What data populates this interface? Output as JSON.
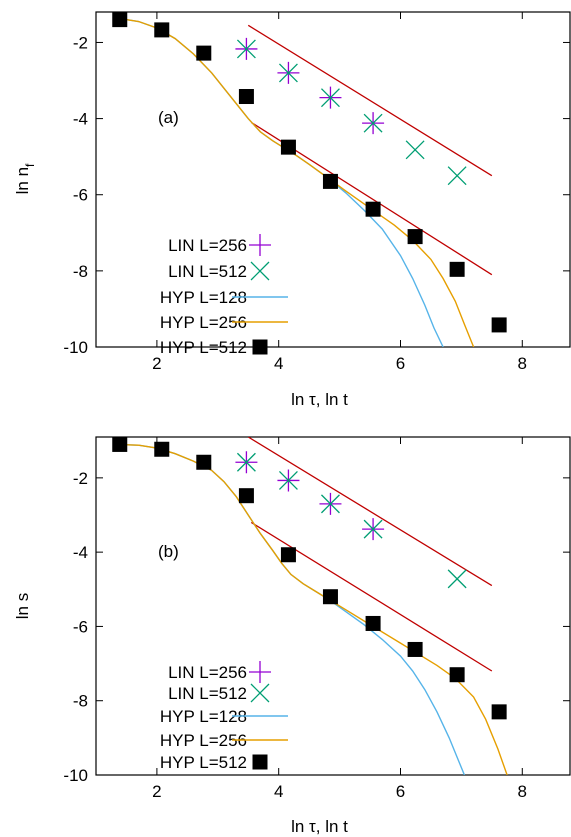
{
  "colors": {
    "lin256": "#9400d3",
    "lin512": "#009e73",
    "hyp128": "#56b4e9",
    "hyp256": "#e69f00",
    "hyp512": "#000000",
    "guide": "#c00000"
  },
  "chart_data": [
    {
      "type": "scatter",
      "panel_label": "(a)",
      "xlabel": "ln τ, ln t",
      "ylabel_main": "ln n",
      "ylabel_sub": "f",
      "xlim": [
        1,
        8.8
      ],
      "ylim": [
        -10,
        -1.2
      ],
      "xticks": [
        2,
        4,
        6,
        8
      ],
      "yticks": [
        -10,
        -8,
        -6,
        -4,
        -2
      ],
      "grid": false,
      "legend_position": "bottom-left",
      "series": [
        {
          "name": "LIN L=256",
          "kind": "plus",
          "color_key": "lin256",
          "x": [
            3.47,
            4.16,
            4.85,
            5.55
          ],
          "y": [
            -2.17,
            -2.8,
            -3.45,
            -4.12
          ]
        },
        {
          "name": "LIN L=512",
          "kind": "cross",
          "color_key": "lin512",
          "x": [
            3.47,
            4.16,
            4.85,
            5.55,
            6.24,
            6.93
          ],
          "y": [
            -2.17,
            -2.8,
            -3.45,
            -4.12,
            -4.82,
            -5.5
          ]
        },
        {
          "name": "HYP L=128",
          "kind": "line",
          "color_key": "hyp128",
          "x": [
            1.3,
            1.7,
            2.0,
            2.3,
            2.6,
            2.9,
            3.2,
            3.5,
            3.7,
            3.9,
            4.1,
            4.3,
            4.5,
            4.8,
            5.1,
            5.4,
            5.7,
            6.0,
            6.2,
            6.4,
            6.55,
            6.7
          ],
          "y": [
            -1.35,
            -1.45,
            -1.62,
            -1.9,
            -2.3,
            -2.8,
            -3.4,
            -4.0,
            -4.35,
            -4.58,
            -4.78,
            -4.98,
            -5.2,
            -5.55,
            -5.95,
            -6.4,
            -6.9,
            -7.6,
            -8.2,
            -8.9,
            -9.5,
            -10.0
          ]
        },
        {
          "name": "HYP L=256",
          "kind": "line",
          "color_key": "hyp256",
          "x": [
            1.3,
            1.7,
            2.0,
            2.3,
            2.6,
            2.9,
            3.2,
            3.5,
            3.7,
            3.9,
            4.1,
            4.3,
            4.5,
            4.8,
            5.1,
            5.5,
            5.9,
            6.2,
            6.5,
            6.7,
            6.9,
            7.05,
            7.2
          ],
          "y": [
            -1.35,
            -1.45,
            -1.62,
            -1.9,
            -2.3,
            -2.8,
            -3.4,
            -4.0,
            -4.35,
            -4.58,
            -4.78,
            -4.98,
            -5.2,
            -5.55,
            -5.9,
            -6.35,
            -6.8,
            -7.2,
            -7.7,
            -8.2,
            -8.8,
            -9.4,
            -10.0
          ]
        },
        {
          "name": "HYP L=512",
          "kind": "square",
          "color_key": "hyp512",
          "x": [
            1.39,
            2.08,
            2.77,
            3.47,
            4.16,
            4.85,
            5.55,
            6.24,
            6.93,
            7.62
          ],
          "y": [
            -1.4,
            -1.67,
            -2.28,
            -3.42,
            -4.75,
            -5.65,
            -6.38,
            -7.1,
            -7.96,
            -9.42
          ]
        }
      ],
      "guide_lines": [
        {
          "x": [
            3.5,
            7.5
          ],
          "y": [
            -1.55,
            -5.5
          ]
        },
        {
          "x": [
            3.55,
            7.5
          ],
          "y": [
            -4.1,
            -8.1
          ]
        }
      ]
    },
    {
      "type": "scatter",
      "panel_label": "(b)",
      "xlabel": "ln τ, ln t",
      "ylabel_main": "ln s",
      "ylabel_sub": "",
      "xlim": [
        1,
        8.8
      ],
      "ylim": [
        -10,
        -0.9
      ],
      "xticks": [
        2,
        4,
        6,
        8
      ],
      "yticks": [
        -10,
        -8,
        -6,
        -4,
        -2
      ],
      "grid": false,
      "legend_position": "bottom-left",
      "series": [
        {
          "name": "LIN L=256",
          "kind": "plus",
          "color_key": "lin256",
          "x": [
            3.47,
            4.16,
            4.85,
            5.55
          ],
          "y": [
            -1.58,
            -2.07,
            -2.7,
            -3.38
          ]
        },
        {
          "name": "LIN L=512",
          "kind": "cross",
          "color_key": "lin512",
          "x": [
            3.47,
            4.16,
            4.85,
            5.55,
            6.93
          ],
          "y": [
            -1.58,
            -2.07,
            -2.7,
            -3.38,
            -4.72
          ]
        },
        {
          "name": "HYP L=128",
          "kind": "line",
          "color_key": "hyp128",
          "x": [
            1.3,
            1.7,
            2.0,
            2.3,
            2.6,
            2.9,
            3.1,
            3.3,
            3.5,
            3.7,
            3.9,
            4.05,
            4.2,
            4.4,
            4.6,
            4.8,
            5.1,
            5.4,
            5.7,
            6.0,
            6.2,
            6.4,
            6.6,
            6.8,
            6.95,
            7.05
          ],
          "y": [
            -1.1,
            -1.12,
            -1.2,
            -1.35,
            -1.55,
            -1.8,
            -2.1,
            -2.5,
            -3.0,
            -3.5,
            -3.95,
            -4.3,
            -4.6,
            -4.85,
            -5.05,
            -5.25,
            -5.6,
            -5.95,
            -6.35,
            -6.8,
            -7.2,
            -7.7,
            -8.3,
            -9.0,
            -9.6,
            -10.0
          ]
        },
        {
          "name": "HYP L=256",
          "kind": "line",
          "color_key": "hyp256",
          "x": [
            1.3,
            1.7,
            2.0,
            2.3,
            2.6,
            2.9,
            3.1,
            3.3,
            3.5,
            3.7,
            3.9,
            4.05,
            4.2,
            4.4,
            4.6,
            4.8,
            5.1,
            5.4,
            5.7,
            6.0,
            6.3,
            6.6,
            6.9,
            7.2,
            7.4,
            7.6,
            7.75
          ],
          "y": [
            -1.1,
            -1.12,
            -1.2,
            -1.35,
            -1.55,
            -1.8,
            -2.1,
            -2.5,
            -3.0,
            -3.5,
            -3.95,
            -4.3,
            -4.6,
            -4.85,
            -5.05,
            -5.25,
            -5.55,
            -5.85,
            -6.15,
            -6.45,
            -6.75,
            -7.05,
            -7.4,
            -7.9,
            -8.5,
            -9.3,
            -10.0
          ]
        },
        {
          "name": "HYP L=512",
          "kind": "square",
          "color_key": "hyp512",
          "x": [
            1.39,
            2.08,
            2.77,
            3.47,
            4.16,
            4.85,
            5.55,
            6.24,
            6.93,
            7.62
          ],
          "y": [
            -1.1,
            -1.23,
            -1.58,
            -2.48,
            -4.07,
            -5.2,
            -5.92,
            -6.62,
            -7.3,
            -8.3
          ]
        }
      ],
      "guide_lines": [
        {
          "x": [
            3.5,
            7.5
          ],
          "y": [
            -0.9,
            -4.9
          ]
        },
        {
          "x": [
            3.55,
            7.5
          ],
          "y": [
            -3.2,
            -7.2
          ]
        }
      ]
    }
  ]
}
